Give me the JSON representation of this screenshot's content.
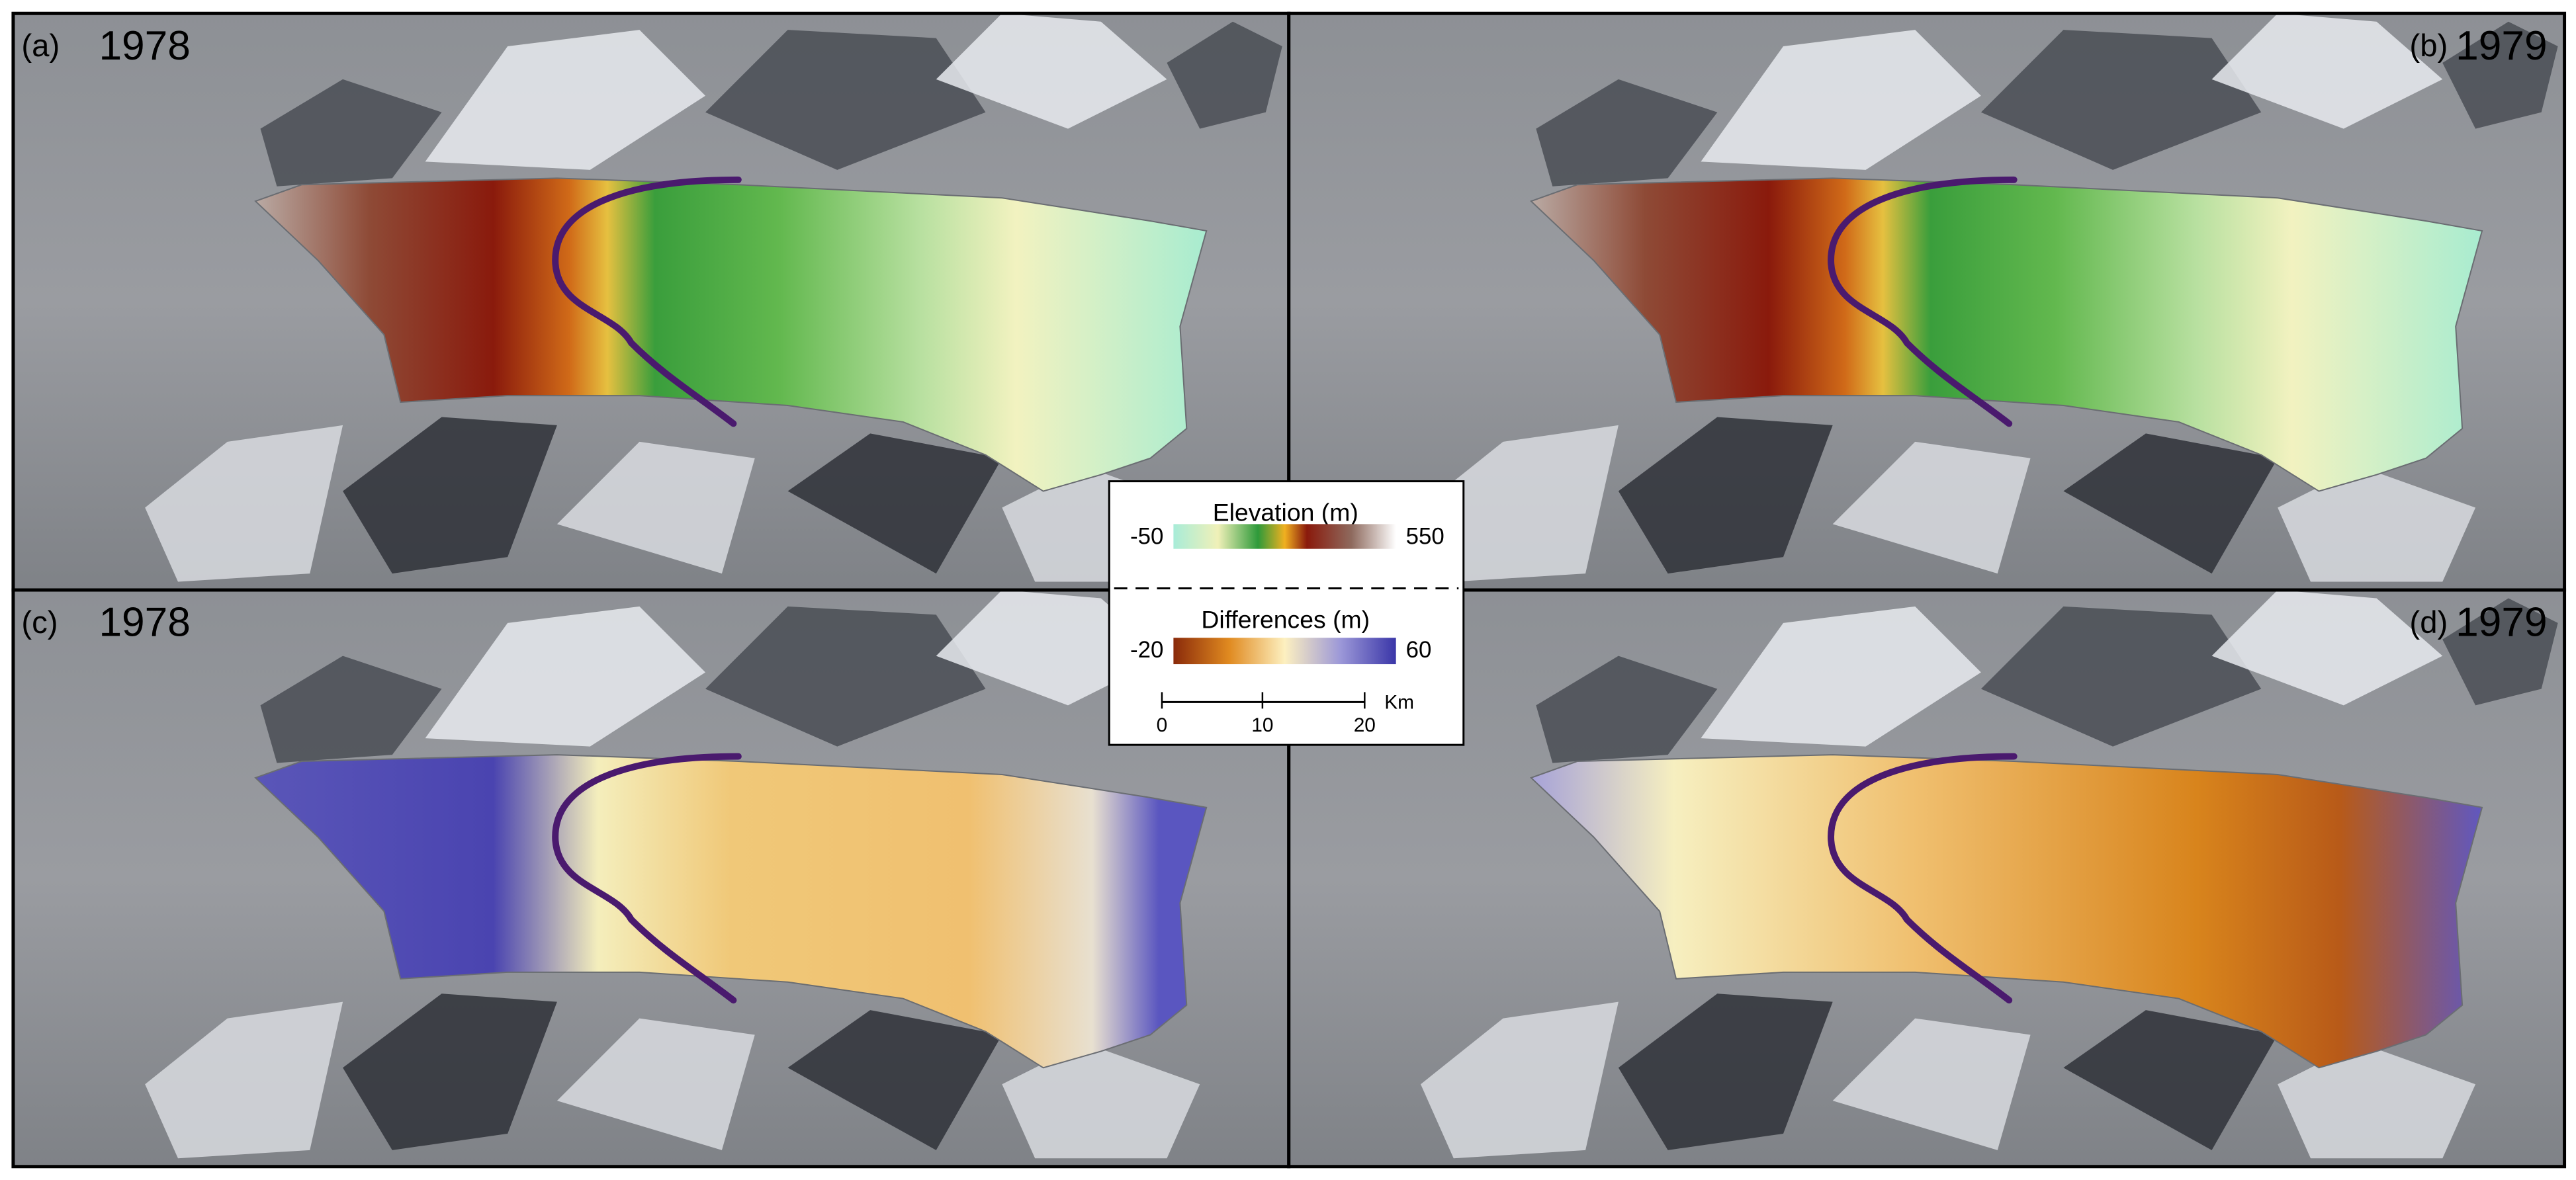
{
  "panels": [
    {
      "label": "(a)",
      "year": "1978"
    },
    {
      "label": "(b)",
      "year": "1979"
    },
    {
      "label": "(c)",
      "year": "1978"
    },
    {
      "label": "(d)",
      "year": "1979"
    }
  ],
  "legend": {
    "elevation": {
      "title": "Elevation (m)",
      "min": -50,
      "max": 550
    },
    "differences": {
      "title": "Differences (m)",
      "min": -20,
      "max": 60
    },
    "scale_bar": {
      "ticks": [
        0,
        10,
        20
      ],
      "unit": "Km"
    }
  }
}
